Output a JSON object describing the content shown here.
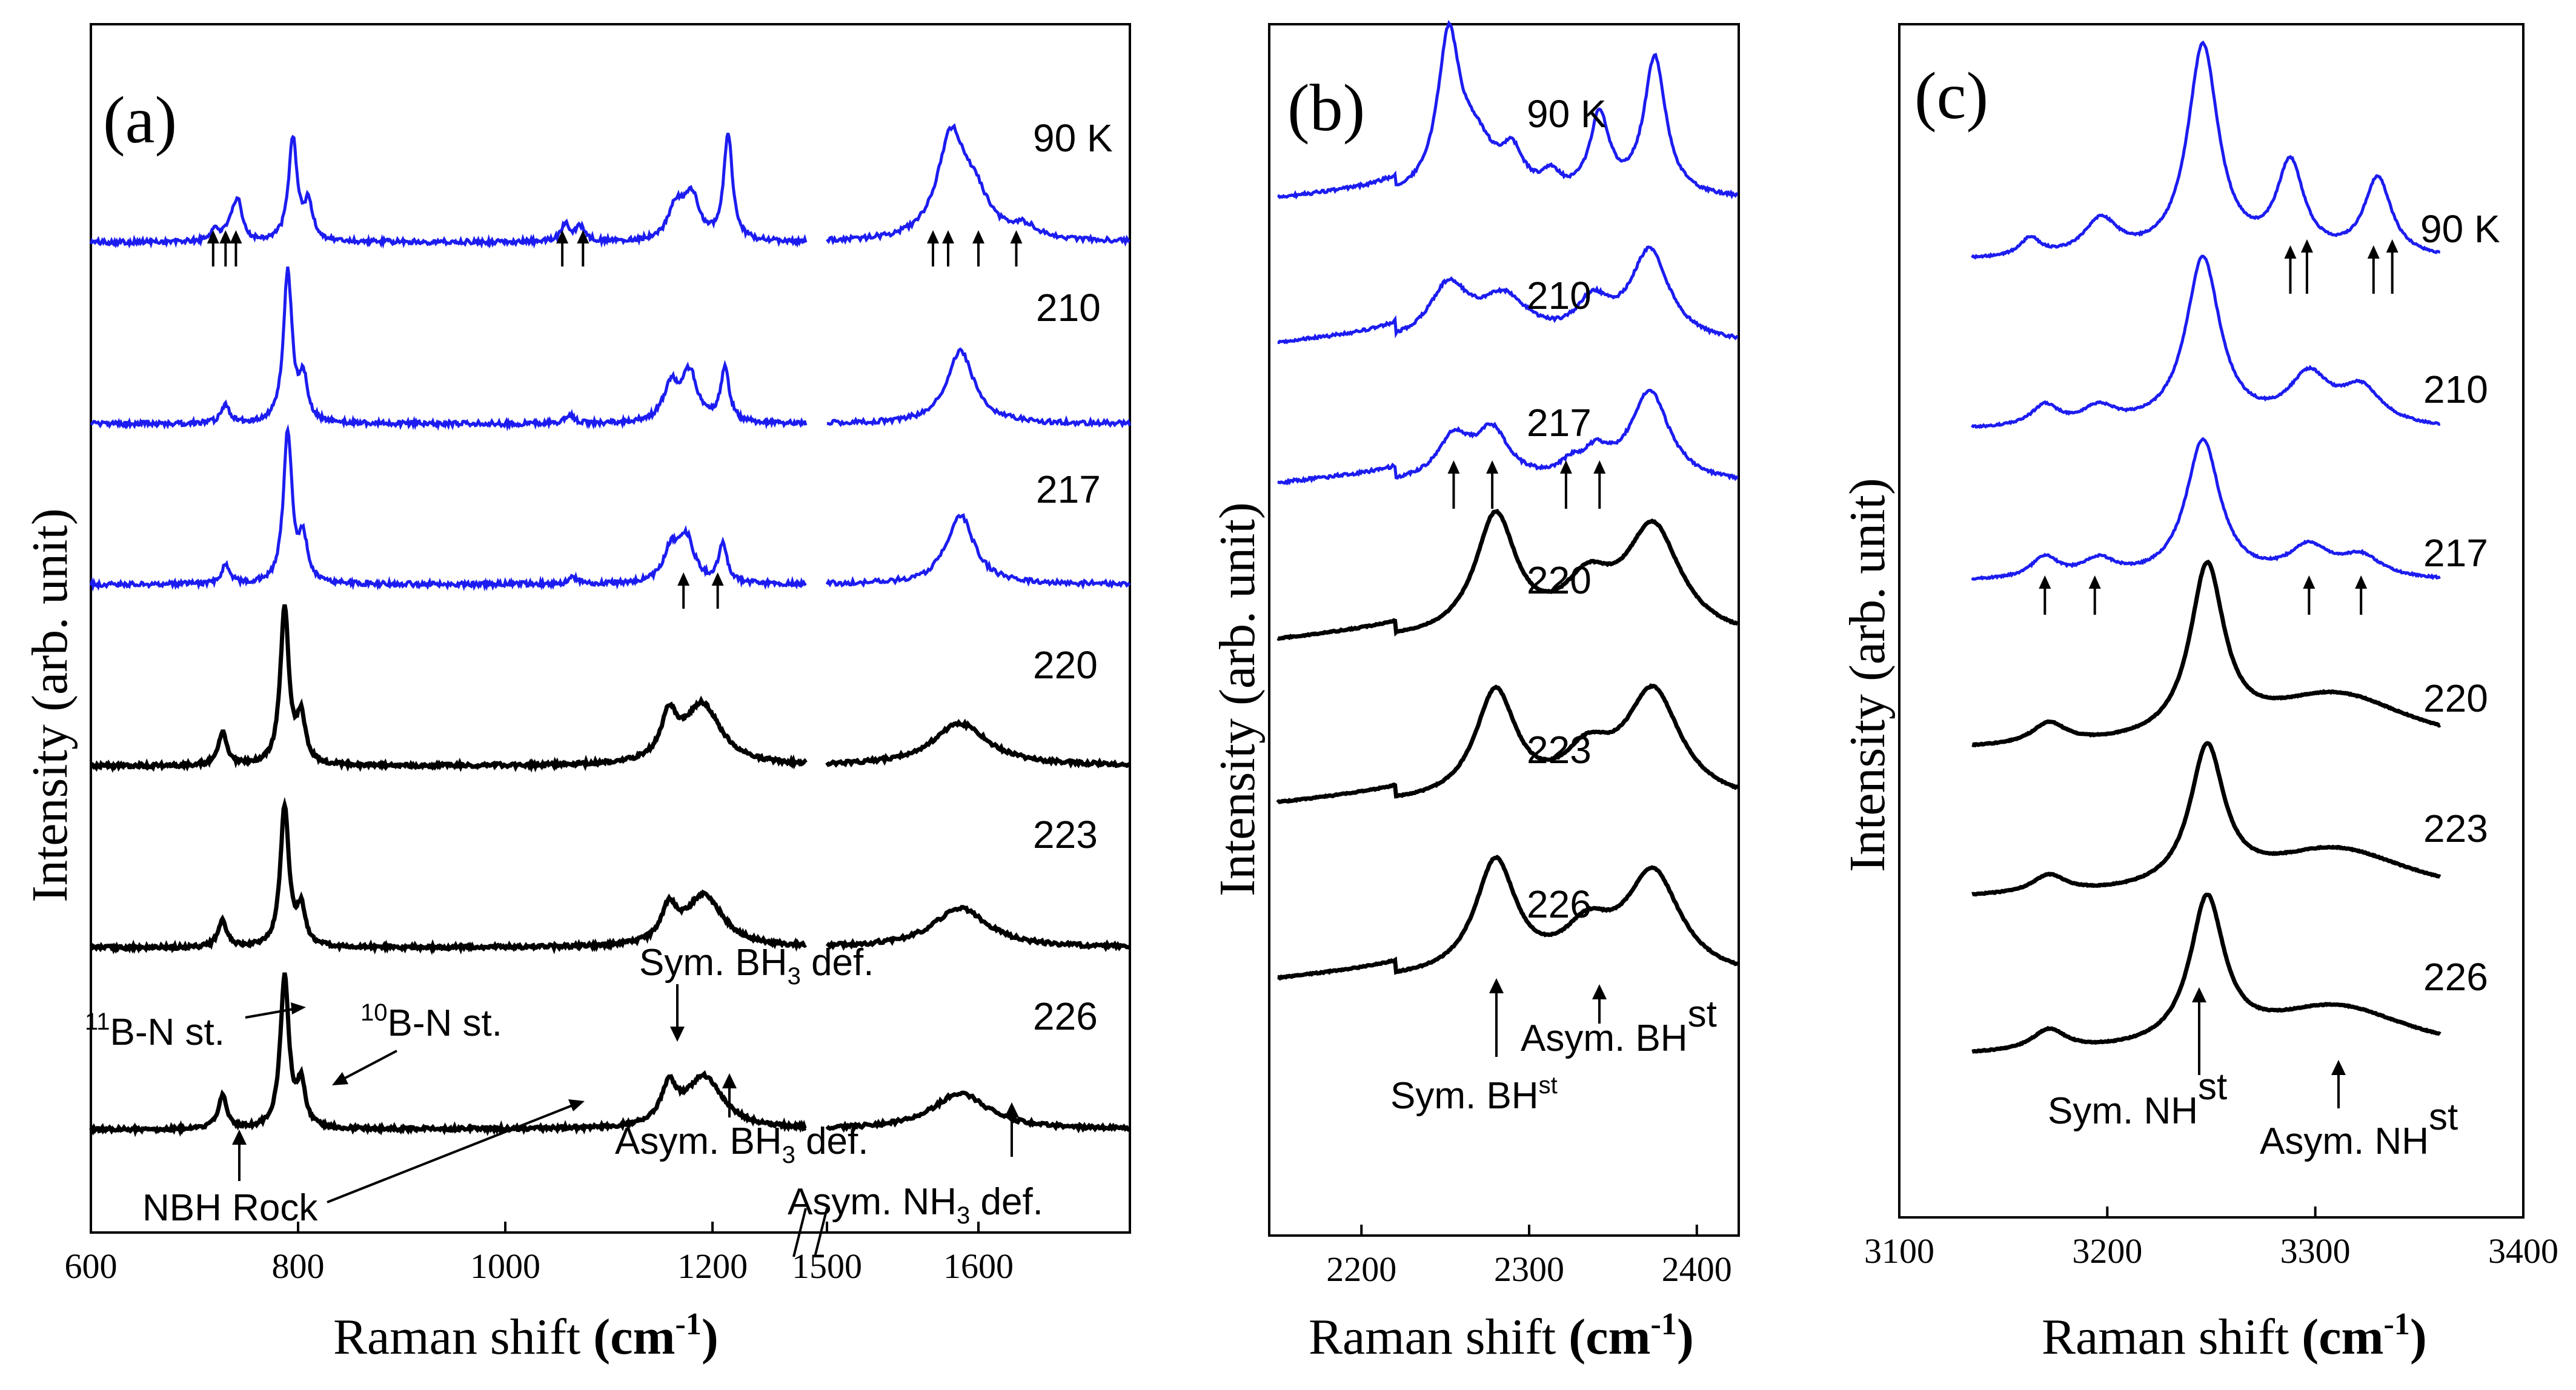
{
  "figure": {
    "xlabel": "Raman shift",
    "xunit_base": "(cm",
    "xunit_sup": "-1",
    "xunit_end": ")",
    "ylabel": "Intensity (arb. unit)",
    "colors": {
      "low_temperature": "#1c1cf0",
      "high_temperature": "#000000"
    }
  },
  "chart_data": [
    {
      "type": "line",
      "panel_label": "(a)",
      "axis_break": true,
      "segments": [
        {
          "xlim": [
            600,
            1290
          ],
          "ticks": [
            "600",
            "800",
            "1000",
            "1200"
          ],
          "tick_values": [
            600,
            800,
            1000,
            1200
          ]
        },
        {
          "xlim": [
            1500,
            1700
          ],
          "ticks": [
            "1500",
            "1600"
          ],
          "tick_values": [
            1500,
            1600
          ]
        }
      ],
      "series": [
        {
          "name": "90 K",
          "color": "#1c1cf0",
          "peaks_cm1": [
            720,
            735,
            742,
            795,
            810,
            1058,
            1072,
            1165,
            1180,
            1215,
            1582,
            1598,
            1630
          ],
          "arrows_cm1": [
            718,
            730,
            740,
            1055,
            1075,
            1570,
            1580,
            1600,
            1625
          ]
        },
        {
          "name": "210",
          "color": "#1c1cf0",
          "peaks_cm1": [
            730,
            790,
            805,
            1062,
            1160,
            1178,
            1212,
            1588
          ]
        },
        {
          "name": "217",
          "color": "#1c1cf0",
          "peaks_cm1": [
            730,
            790,
            805,
            1065,
            1160,
            1175,
            1210,
            1588
          ],
          "arrows_cm1": [
            1172,
            1205
          ]
        },
        {
          "name": "220",
          "color": "#000000",
          "peaks_cm1": [
            727,
            787,
            803,
            1158,
            1190,
            1588
          ]
        },
        {
          "name": "223",
          "color": "#000000",
          "peaks_cm1": [
            727,
            787,
            803,
            1158,
            1192,
            1588
          ]
        },
        {
          "name": "226",
          "color": "#000000",
          "peaks_cm1": [
            727,
            787,
            803,
            1158,
            1192,
            1588
          ]
        }
      ],
      "annotations": {
        "b11_pre": "11",
        "b11_post": "B-N st.",
        "b10_pre": "10",
        "b10_post": "B-N st.",
        "sym_bh3_pre": "Sym. BH",
        "sym_bh3_sub": "3",
        "sym_bh3_post": " def.",
        "asym_bh3_pre": "Asym. BH",
        "asym_bh3_sub": "3",
        "asym_bh3_post": " def.",
        "nbh_rock": "NBH Rock",
        "asym_nh3_pre": "Asym. NH",
        "asym_nh3_sub": "3",
        "asym_nh3_post": " def."
      }
    },
    {
      "type": "line",
      "panel_label": "(b)",
      "xlim": [
        2145,
        2425
      ],
      "ticks": [
        "2200",
        "2300",
        "2400"
      ],
      "tick_values": [
        2200,
        2300,
        2400
      ],
      "series": [
        {
          "name": "90 K",
          "color": "#1c1cf0",
          "peaks_cm1": [
            2252,
            2268,
            2290,
            2313,
            2342,
            2375
          ]
        },
        {
          "name": "210",
          "color": "#1c1cf0",
          "peaks_cm1": [
            2252,
            2285,
            2338,
            2372
          ]
        },
        {
          "name": "217",
          "color": "#1c1cf0",
          "peaks_cm1": [
            2255,
            2278,
            2325,
            2340,
            2372
          ],
          "arrows_cm1": [
            2255,
            2278,
            2322,
            2342
          ]
        },
        {
          "name": "220",
          "color": "#000000",
          "peaks_cm1": [
            2280,
            2335,
            2374
          ]
        },
        {
          "name": "223",
          "color": "#000000",
          "peaks_cm1": [
            2280,
            2335,
            2374
          ]
        },
        {
          "name": "226",
          "color": "#000000",
          "peaks_cm1": [
            2280,
            2335,
            2374
          ]
        }
      ],
      "annotations": {
        "asym_pre": "Asym. BH",
        "asym_sup": "st",
        "sym_pre": "Sym. BH",
        "sym_sup": "st"
      }
    },
    {
      "type": "line",
      "panel_label": "(c)",
      "xlim": [
        3100,
        3400
      ],
      "ticks": [
        "3100",
        "3200",
        "3300",
        "3400"
      ],
      "tick_values": [
        3100,
        3200,
        3300,
        3400
      ],
      "series": [
        {
          "name": "90 K",
          "color": "#1c1cf0",
          "peaks_cm1": [
            3163,
            3197,
            3246,
            3288,
            3330
          ],
          "arrows_cm1": [
            3288,
            3296,
            3328,
            3337
          ]
        },
        {
          "name": "210",
          "color": "#1c1cf0",
          "peaks_cm1": [
            3170,
            3196,
            3246,
            3297,
            3322
          ]
        },
        {
          "name": "217",
          "color": "#1c1cf0",
          "peaks_cm1": [
            3170,
            3196,
            3246,
            3297,
            3322
          ],
          "arrows_cm1": [
            3170,
            3194,
            3297,
            3322
          ]
        },
        {
          "name": "220",
          "color": "#000000",
          "peaks_cm1": [
            3172,
            3248,
            3310
          ]
        },
        {
          "name": "223",
          "color": "#000000",
          "peaks_cm1": [
            3172,
            3248,
            3310
          ]
        },
        {
          "name": "226",
          "color": "#000000",
          "peaks_cm1": [
            3172,
            3248,
            3310
          ]
        }
      ],
      "annotations": {
        "sym_pre": "Sym. NH",
        "sym_sup": "st",
        "asym_pre": "Asym. NH",
        "asym_sup": "st"
      }
    }
  ]
}
